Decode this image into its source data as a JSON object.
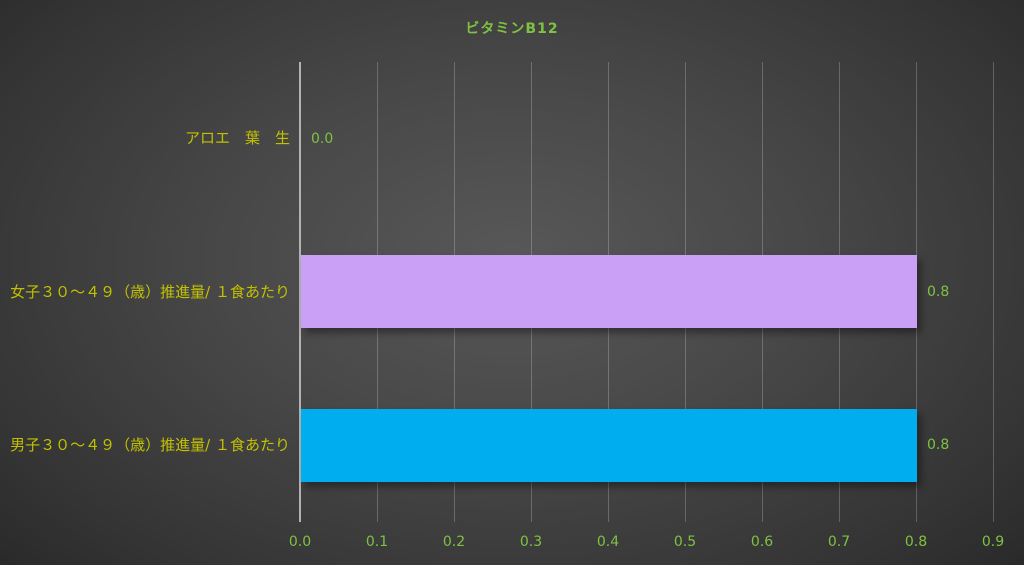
{
  "chart_data": {
    "type": "bar",
    "orientation": "horizontal",
    "title": "ビタミンB12",
    "categories": [
      "アロエ　葉　生",
      "女子３０〜４９（歳）推進量/ １食あたり",
      "男子３０〜４９（歳）推進量/ １食あたり"
    ],
    "values": [
      0.0,
      0.8,
      0.8
    ],
    "data_labels": [
      "0.0",
      "0.8",
      "0.8"
    ],
    "bar_colors": [
      "#C9A0F5",
      "#C9A0F5",
      "#00AEEF"
    ],
    "xlim": [
      0,
      0.9
    ],
    "x_ticks": [
      "0.0",
      "0.1",
      "0.2",
      "0.3",
      "0.4",
      "0.5",
      "0.6",
      "0.7",
      "0.8",
      "0.9"
    ],
    "grid": true,
    "legend": "none",
    "xlabel": "",
    "ylabel": ""
  },
  "colors": {
    "title_text": "#7EC242",
    "category_text": "#C2C100",
    "tick_text": "#7EC242",
    "data_label_text": "#7EC242",
    "axis_line": "#B2B2B2",
    "bar_female": "#C9A0F5",
    "bar_male": "#00AEEF"
  }
}
